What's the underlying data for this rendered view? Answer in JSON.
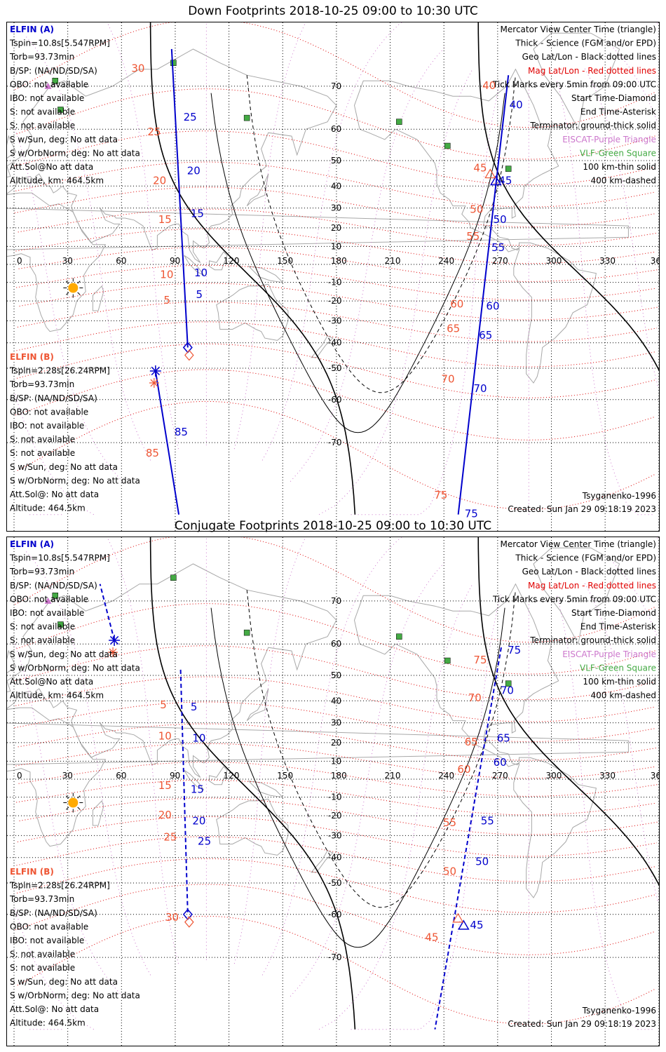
{
  "panels": [
    {
      "title": "Down Footprints 2018-10-25 09:00 to 10:30 UTC",
      "trackStyle": "solid",
      "a_info": [
        "ELFIN (A)",
        "Tspin=10.8s[5.547RPM]",
        "Torb=93.73min",
        "B/SP: (NA/ND/SD/SA)",
        "OBO: not available",
        "IBO: not available",
        "S: not available",
        "S: not available",
        "S w/Sun, deg: No att data",
        "S w/OrbNorm, deg: No att data",
        "Att.Sol@No att data",
        "Altitude, km: 464.5km"
      ],
      "b_info": [
        "ELFIN (B)",
        "Tspin=2.28s[26.24RPM]",
        "Torb=93.73min",
        "B/SP: (NA/ND/SD/SA)",
        "OBO: not available",
        "IBO: not available",
        "S: not available",
        "S: not available",
        "S w/Sun, deg: No att data",
        "S w/OrbNorm, deg: No att data",
        "Att.Sol@: No att data",
        "Altitude: 464.5km"
      ],
      "a_track": {
        "start": [
          88,
          76
        ],
        "end": [
          97,
          -42
        ],
        "blue": [
          {
            "t": "25",
            "lon": 93,
            "lat": 63
          },
          {
            "t": "20",
            "lon": 95,
            "lat": 46
          },
          {
            "t": "15",
            "lon": 97,
            "lat": 27
          },
          {
            "t": "10",
            "lon": 99,
            "lat": -5
          },
          {
            "t": "5",
            "lon": 100,
            "lat": -17
          }
        ],
        "red": [
          {
            "t": "30",
            "lon": 71,
            "lat": 73
          },
          {
            "t": "25",
            "lon": 80,
            "lat": 59
          },
          {
            "t": "20",
            "lon": 83,
            "lat": 42
          },
          {
            "t": "15",
            "lon": 86,
            "lat": 24
          },
          {
            "t": "10",
            "lon": 87,
            "lat": -6
          },
          {
            "t": "5",
            "lon": 89,
            "lat": -20
          }
        ]
      },
      "a_track2": {
        "start": [
          276,
          72
        ],
        "end": [
          248,
          -90
        ],
        "blue": [
          {
            "t": "40",
            "lon": 275,
            "lat": 66
          },
          {
            "t": "45",
            "lon": 269,
            "lat": 42
          },
          {
            "t": "50",
            "lon": 266,
            "lat": 24
          },
          {
            "t": "55",
            "lon": 265,
            "lat": 9
          },
          {
            "t": "60",
            "lon": 262,
            "lat": -23
          },
          {
            "t": "65",
            "lon": 258,
            "lat": -37
          },
          {
            "t": "70",
            "lon": 255,
            "lat": -57
          },
          {
            "t": "75",
            "lon": 250,
            "lat": -88
          }
        ],
        "red": [
          {
            "t": "40",
            "lon": 267,
            "lat": 70
          },
          {
            "t": "45",
            "lon": 262,
            "lat": 47
          },
          {
            "t": "50",
            "lon": 260,
            "lat": 29
          },
          {
            "t": "55",
            "lon": 258,
            "lat": 15
          },
          {
            "t": "60",
            "lon": 249,
            "lat": -22
          },
          {
            "t": "65",
            "lon": 247,
            "lat": -34
          },
          {
            "t": "70",
            "lon": 244,
            "lat": -54
          },
          {
            "t": "75",
            "lon": 240,
            "lat": -78
          }
        ]
      },
      "b_track": {
        "start": [
          79,
          -51
        ],
        "end": [
          92,
          -90
        ],
        "blue": [
          {
            "t": "85",
            "lon": 88,
            "lat": -68
          }
        ],
        "red": [
          {
            "t": "85",
            "lon": 79,
            "lat": -72
          }
        ]
      },
      "tri": [
        269,
        42
      ],
      "footer_left": "Tsyganenko-1996",
      "footer_right": "Created: Sun Jan 29 09:18:19 2023"
    },
    {
      "title": "Conjugate Footprints 2018-10-25 09:00 to 10:30 UTC",
      "trackStyle": "dashed",
      "a_info": [
        "ELFIN (A)",
        "Tspin=10.8s[5.547RPM]",
        "Torb=93.73min",
        "B/SP: (NA/ND/SD/SA)",
        "OBO: not available",
        "IBO: not available",
        "S: not available",
        "S: not available",
        "S w/Sun, deg: No att data",
        "S w/OrbNorm, deg: No att data",
        "Att.Sol@No att data",
        "Altitude, km: 464.5km"
      ],
      "b_info": [
        "ELFIN (B)",
        "Tspin=2.28s[26.24RPM]",
        "Torb=93.73min",
        "B/SP: (NA/ND/SD/SA)",
        "OBO: not available",
        "IBO: not available",
        "S: not available",
        "S: not available",
        "S w/Sun, deg: No att data",
        "S w/OrbNorm, deg: No att data",
        "Att.Sol@: No att data",
        "Altitude: 464.5km"
      ],
      "a_track": {
        "start": [
          93,
          52
        ],
        "end": [
          97,
          -60
        ],
        "blue": [
          {
            "t": "5",
            "lon": 97,
            "lat": 37
          },
          {
            "t": "10",
            "lon": 98,
            "lat": 22
          },
          {
            "t": "15",
            "lon": 97,
            "lat": -6
          },
          {
            "t": "20",
            "lon": 98,
            "lat": -23
          },
          {
            "t": "25",
            "lon": 101,
            "lat": -33
          }
        ],
        "red": [
          {
            "t": "5",
            "lon": 87,
            "lat": 38
          },
          {
            "t": "10",
            "lon": 86,
            "lat": 23
          },
          {
            "t": "15",
            "lon": 86,
            "lat": -4
          },
          {
            "t": "20",
            "lon": 86,
            "lat": -20
          },
          {
            "t": "25",
            "lon": 89,
            "lat": -31
          },
          {
            "t": "30",
            "lon": 90,
            "lat": -61
          }
        ]
      },
      "a_track2": {
        "start": [
          272,
          59
        ],
        "end": [
          235,
          -90
        ],
        "blue": [
          {
            "t": "75",
            "lon": 274,
            "lat": 58
          },
          {
            "t": "70",
            "lon": 270,
            "lat": 44
          },
          {
            "t": "65",
            "lon": 268,
            "lat": 22
          },
          {
            "t": "60",
            "lon": 266,
            "lat": 9
          },
          {
            "t": "55",
            "lon": 259,
            "lat": -23
          },
          {
            "t": "50",
            "lon": 256,
            "lat": -42
          },
          {
            "t": "45",
            "lon": 253,
            "lat": -63
          }
        ],
        "red": [
          {
            "t": "75",
            "lon": 262,
            "lat": 55
          },
          {
            "t": "70",
            "lon": 259,
            "lat": 41
          },
          {
            "t": "65",
            "lon": 257,
            "lat": 20
          },
          {
            "t": "60",
            "lon": 253,
            "lat": 5
          },
          {
            "t": "55",
            "lon": 245,
            "lat": -24
          },
          {
            "t": "50",
            "lon": 245,
            "lat": -46
          },
          {
            "t": "45",
            "lon": 235,
            "lat": -66
          }
        ]
      },
      "b_track": {
        "start": [
          56,
          61
        ],
        "end": [
          48,
          73
        ],
        "blue": [],
        "red": []
      },
      "tri": [
        251,
        -63
      ],
      "footer_left": "Tsyganenko-1996",
      "footer_right": "Created: Sun Jan 29 09:18:19 2023"
    }
  ],
  "legend": [
    {
      "t": "Mercator View Center Time (triangle)",
      "c": "#000000"
    },
    {
      "t": "Thick - Science (FGM and/or EPD)",
      "c": "#000000"
    },
    {
      "t": "Geo Lat/Lon - Black dotted lines",
      "c": "#000000"
    },
    {
      "t": "Mag Lat/Lon - Red dotted lines",
      "c": "#e00000"
    },
    {
      "t": "Tick Marks every 5min from 09:00 UTC",
      "c": "#000000"
    },
    {
      "t": "Start Time-Diamond",
      "c": "#000000"
    },
    {
      "t": "End Time-Asterisk",
      "c": "#000000"
    },
    {
      "t": "Terminator: ground-thick solid",
      "c": "#000000"
    },
    {
      "t": "EISCAT-Purple Triangle",
      "c": "#cc77cc"
    },
    {
      "t": "VLF-Green Square",
      "c": "#44aa44"
    },
    {
      "t": "100 km-thin solid",
      "c": "#000000"
    },
    {
      "t": "400 km-dashed",
      "c": "#000000"
    }
  ],
  "lon_labels": [
    "0",
    "30",
    "60",
    "90",
    "120",
    "150",
    "180",
    "210",
    "240",
    "270",
    "300",
    "330",
    "360"
  ],
  "lat_labels": [
    "70",
    "60",
    "50",
    "40",
    "30",
    "20",
    "10",
    "-10",
    "-20",
    "-30",
    "-40",
    "-50",
    "-60",
    "-70"
  ],
  "colors": {
    "blue": "#0000cc",
    "red": "#ee5533",
    "grid": "#000000",
    "mag": "#dd0000",
    "land": "#a8a8a8",
    "vlf": "#44aa44",
    "eiscat": "#cc77cc",
    "sun": "#ffaa00"
  }
}
